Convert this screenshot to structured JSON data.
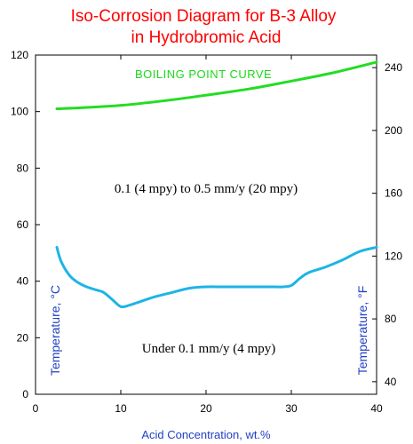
{
  "chart_data": {
    "type": "line",
    "title_line1": "Iso-Corrosion Diagram for B-3 Alloy",
    "title_line2": "in Hydrobromic Acid",
    "xlabel": "Acid Concentration, wt.%",
    "ylabel_left": "Temperature, °C",
    "ylabel_right": "Temperature, °F",
    "xlim": [
      0,
      40
    ],
    "ylim": [
      0,
      120
    ],
    "ylim_right": [
      32,
      248
    ],
    "x_ticks": [
      0,
      10,
      20,
      30,
      40
    ],
    "y_ticks": [
      0,
      20,
      40,
      60,
      80,
      100,
      120
    ],
    "y_right_ticks": [
      40,
      80,
      120,
      160,
      200,
      240
    ],
    "grid": false,
    "series": [
      {
        "name": "BOILING POINT CURVE",
        "color": "#22dd22",
        "x": [
          2.5,
          5,
          10,
          15,
          20,
          25,
          30,
          35,
          40
        ],
        "y": [
          101,
          101.3,
          102.2,
          103.8,
          105.8,
          108,
          110.8,
          113.8,
          117.5
        ]
      },
      {
        "name": "",
        "color": "#1eb4e6",
        "x": [
          2.5,
          3,
          4,
          5,
          6,
          7,
          8,
          9,
          10,
          11,
          12,
          14,
          16,
          18,
          20,
          22,
          24,
          26,
          28,
          29,
          30,
          31,
          32,
          34,
          36,
          38,
          40
        ],
        "y": [
          52,
          47,
          42,
          39.5,
          38,
          37,
          36,
          33.5,
          31,
          31.5,
          32.5,
          34.5,
          36,
          37.5,
          38,
          38,
          38,
          38,
          38,
          38,
          38.5,
          41,
          43,
          45,
          47.5,
          50.5,
          52
        ]
      }
    ],
    "annotations": {
      "upper_region": "0.1 (4 mpy) to 0.5 mm/y (20 mpy)",
      "lower_region": "Under 0.1 mm/y (4 mpy)"
    }
  }
}
